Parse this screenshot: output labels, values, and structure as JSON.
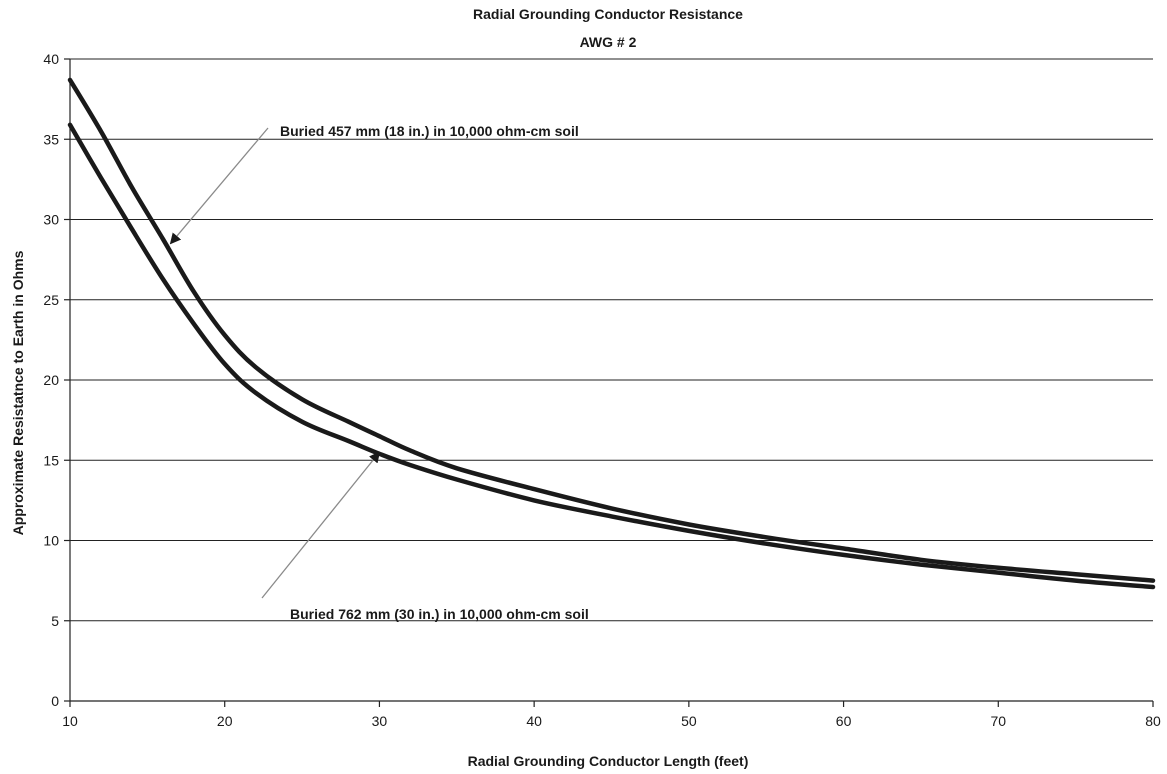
{
  "chart_data": {
    "type": "line",
    "title": "Radial Grounding Conductor Resistance",
    "subtitle": "AWG # 2",
    "xlabel": "Radial Grounding Conductor Length (feet)",
    "ylabel": "Approximate Resistatnce to Earth in Ohms",
    "xlim": [
      10,
      80
    ],
    "ylim": [
      0,
      40
    ],
    "xticks": [
      10,
      20,
      30,
      40,
      50,
      60,
      70,
      80
    ],
    "yticks": [
      0,
      5,
      10,
      15,
      20,
      25,
      30,
      35,
      40
    ],
    "grid": "horizontal",
    "series": [
      {
        "x": [
          10,
          12,
          14,
          16,
          18,
          20,
          22,
          25,
          28,
          30,
          32,
          35,
          40,
          45,
          50,
          55,
          60,
          65,
          70,
          75,
          80
        ],
        "values": [
          38.7,
          35.5,
          32.0,
          28.8,
          25.5,
          22.8,
          20.8,
          18.8,
          17.4,
          16.5,
          15.6,
          14.5,
          13.2,
          12.0,
          11.0,
          10.2,
          9.5,
          8.8,
          8.3,
          7.9,
          7.5
        ]
      },
      {
        "x": [
          10,
          12,
          14,
          16,
          18,
          20,
          22,
          25,
          28,
          30,
          32,
          35,
          40,
          45,
          50,
          55,
          60,
          65,
          70,
          75,
          80
        ],
        "values": [
          35.9,
          32.6,
          29.4,
          26.3,
          23.5,
          21.0,
          19.2,
          17.4,
          16.2,
          15.4,
          14.7,
          13.8,
          12.5,
          11.5,
          10.6,
          9.8,
          9.1,
          8.5,
          8.0,
          7.5,
          7.1
        ]
      }
    ],
    "annotations": [
      {
        "text": "Buried 457 mm (18 in.) in 10,000 ohm-cm soil",
        "arrow_to": [
          16.5,
          28.5
        ]
      },
      {
        "text": "Buried 762 mm (30 in.) in 10,000 ohm-cm soil",
        "arrow_to": [
          30,
          15.5
        ]
      }
    ]
  }
}
